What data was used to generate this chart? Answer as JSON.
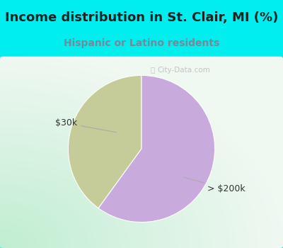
{
  "title": "Income distribution in St. Clair, MI (%)",
  "subtitle": "Hispanic or Latino residents",
  "title_color": "#222222",
  "subtitle_color": "#778899",
  "background_color": "#00EEEE",
  "chart_area_color": "#e8f5ee",
  "slices": [
    0.4,
    0.6
  ],
  "slice_colors": [
    "#c5cc9a",
    "#c8aadc"
  ],
  "label_30k": "$30k",
  "label_200k": "> $200k",
  "watermark": "City-Data.com",
  "watermark_color": "#bbbbbb",
  "title_fontsize": 13,
  "subtitle_fontsize": 10,
  "label_fontsize": 9
}
